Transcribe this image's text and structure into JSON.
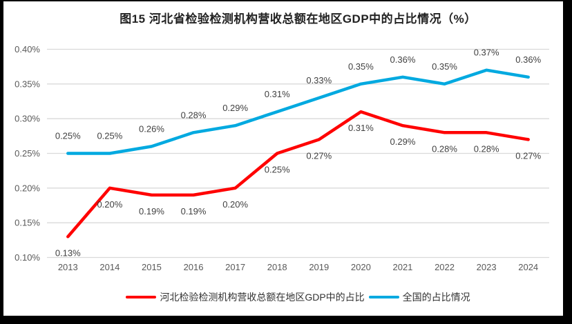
{
  "frame": {
    "border_color": "#000000",
    "canvas_color": "#ffffff"
  },
  "chart_data": {
    "type": "line",
    "title": "图15 河北省检验检测机构营收总额在地区GDP中的占比情况（%）",
    "categories": [
      "2013",
      "2014",
      "2015",
      "2016",
      "2017",
      "2018",
      "2019",
      "2020",
      "2021",
      "2022",
      "2023",
      "2024"
    ],
    "series": [
      {
        "name": "河北检验检测机构营收总额在地区GDP中的占比",
        "color": "#ff0000",
        "values": [
          0.13,
          0.2,
          0.19,
          0.19,
          0.2,
          0.25,
          0.27,
          0.31,
          0.29,
          0.28,
          0.28,
          0.27
        ],
        "labels": [
          "0.13%",
          "0.20%",
          "0.19%",
          "0.19%",
          "0.20%",
          "0.25%",
          "0.27%",
          "0.31%",
          "0.29%",
          "0.28%",
          "0.28%",
          "0.27%"
        ],
        "label_position": "below"
      },
      {
        "name": "全国的占比情况",
        "color": "#00a9e0",
        "values": [
          0.25,
          0.25,
          0.26,
          0.28,
          0.29,
          0.31,
          0.33,
          0.35,
          0.36,
          0.35,
          0.37,
          0.36
        ],
        "labels": [
          "0.25%",
          "0.25%",
          "0.26%",
          "0.28%",
          "0.29%",
          "0.31%",
          "0.33%",
          "0.35%",
          "0.36%",
          "0.35%",
          "0.37%",
          "0.36%"
        ],
        "label_position": "above"
      }
    ],
    "y_axis": {
      "min": 0.1,
      "max": 0.4,
      "step": 0.05,
      "tick_labels": [
        "0.10%",
        "0.15%",
        "0.20%",
        "0.25%",
        "0.30%",
        "0.35%",
        "0.40%"
      ]
    },
    "grid": true,
    "legend_position": "bottom",
    "colors": {
      "gridline": "#d9d9d9",
      "axis_label": "#595959",
      "data_label": "#404040",
      "title": "#222222"
    }
  }
}
